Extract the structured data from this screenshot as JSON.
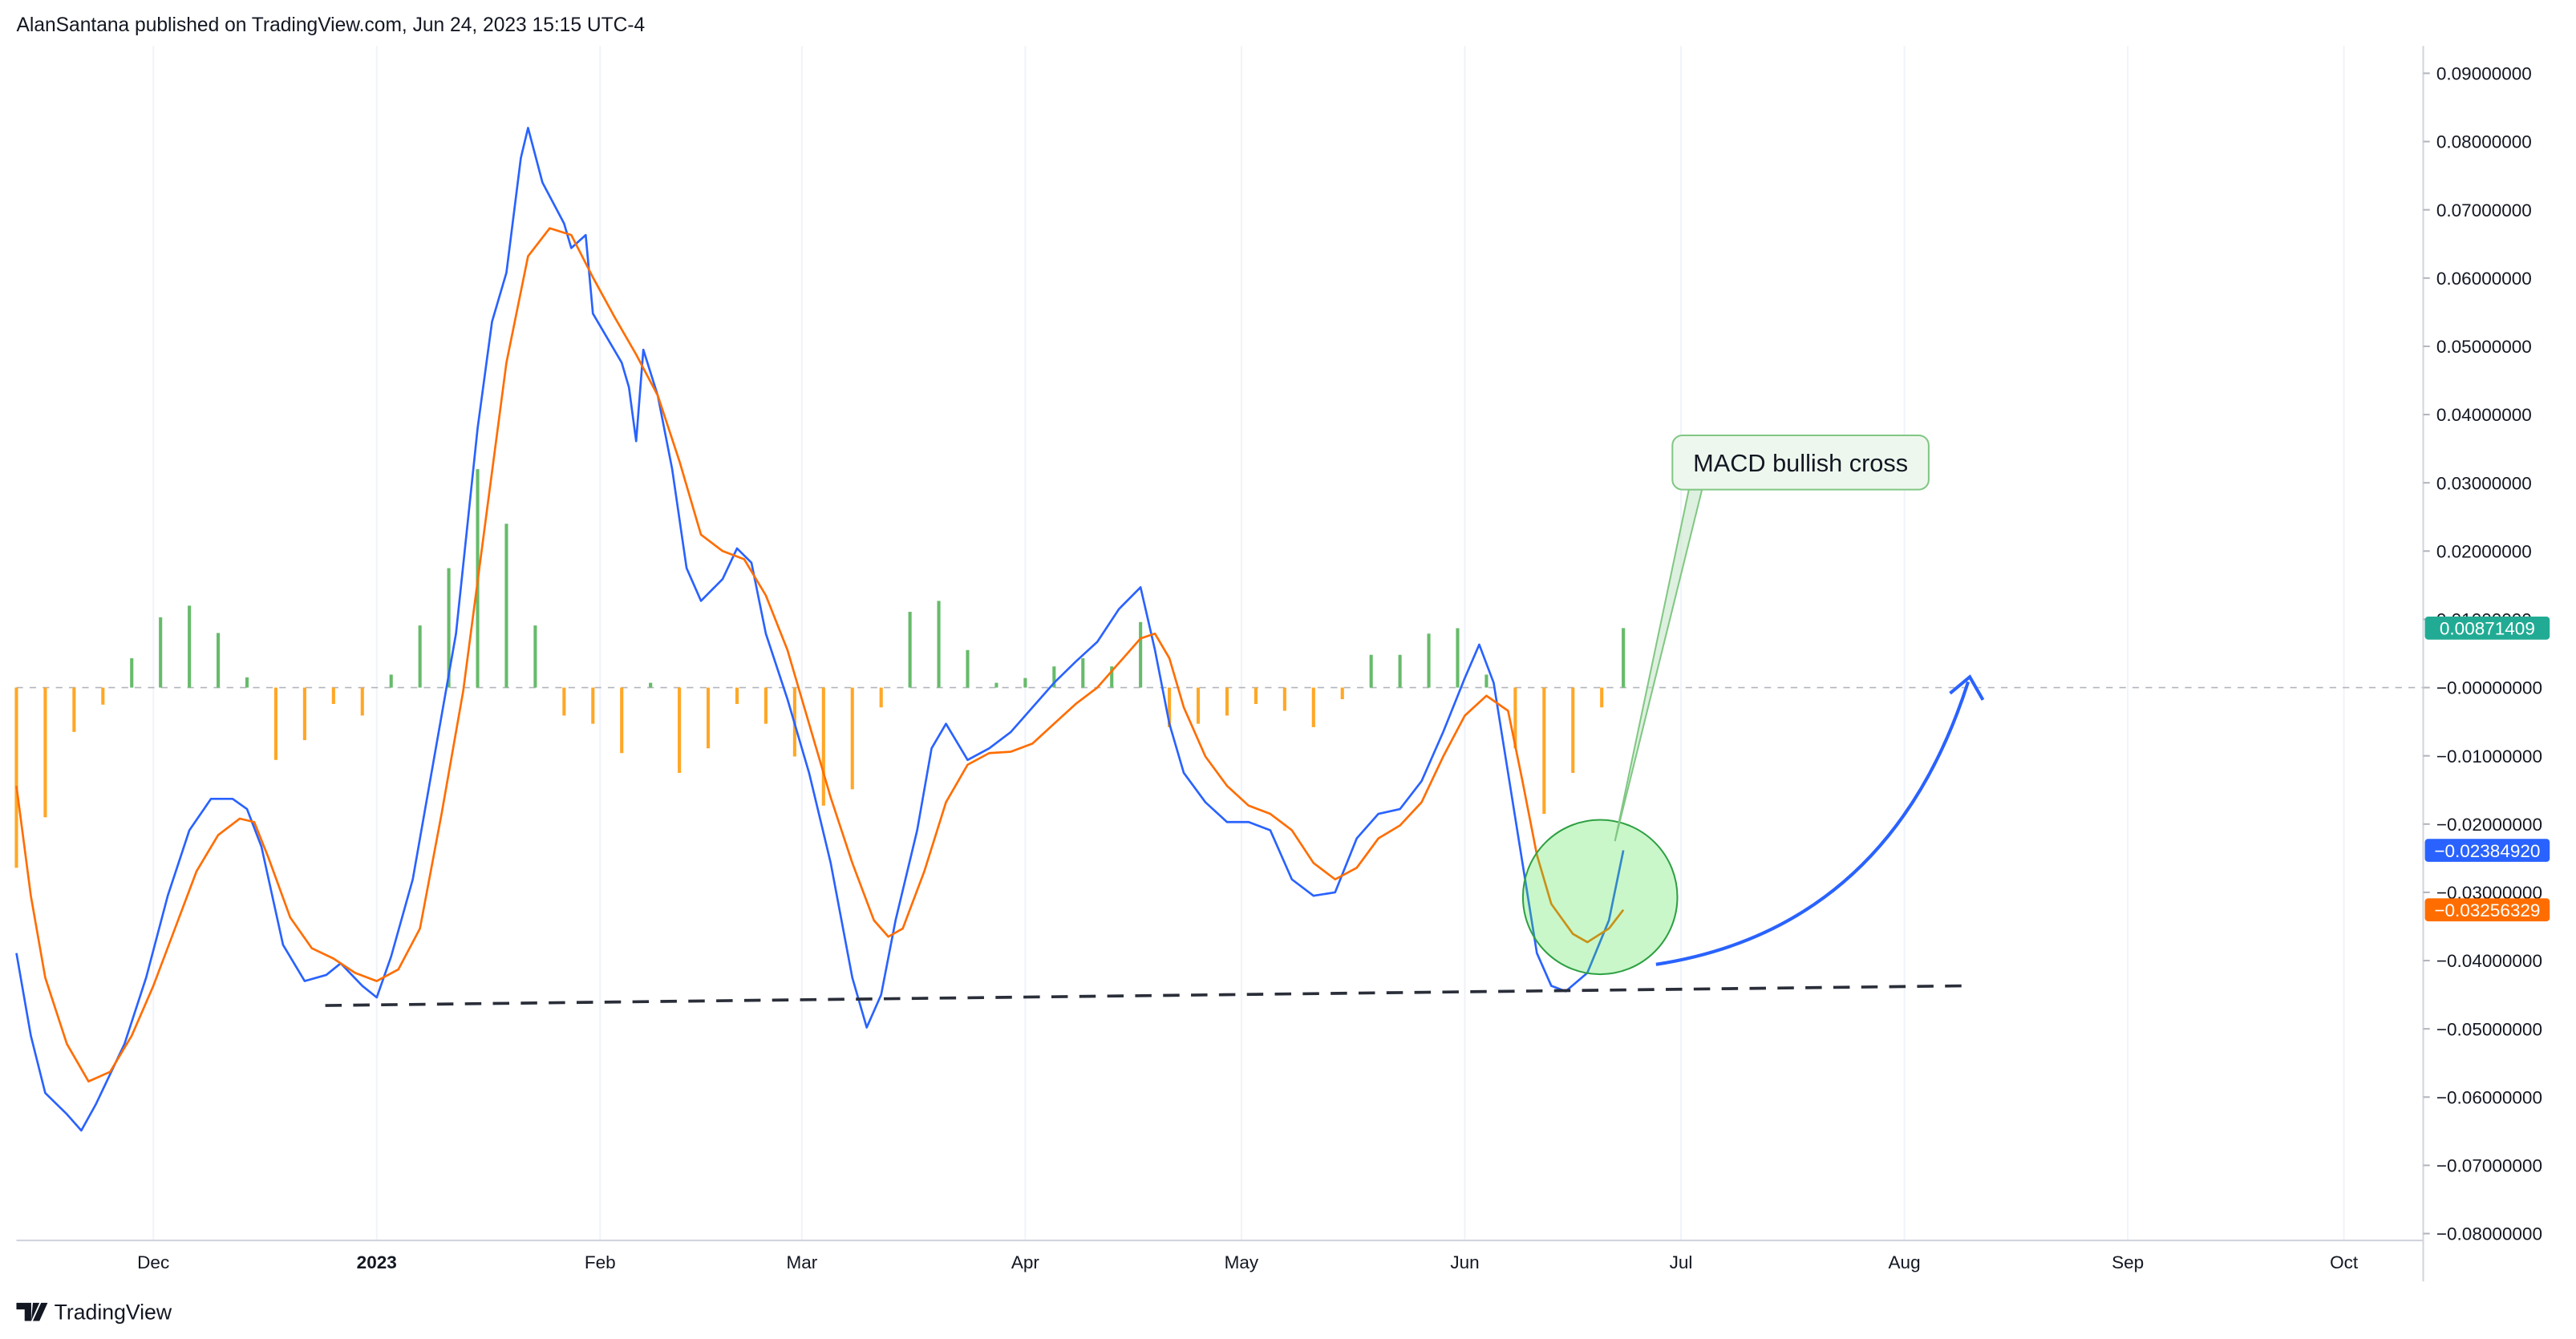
{
  "header": {
    "text": "AlanSantana published on TradingView.com, Jun 24, 2023 15:15 UTC-4"
  },
  "footer": {
    "brand": "TradingView"
  },
  "chart_data": {
    "type": "line",
    "annotation": "MACD bullish cross",
    "xlim": [
      -19,
      315
    ],
    "xticks": [
      {
        "value": 0,
        "label": "Dec"
      },
      {
        "value": 31,
        "label": "2023"
      },
      {
        "value": 62,
        "label": "Feb"
      },
      {
        "value": 90,
        "label": "Mar"
      },
      {
        "value": 121,
        "label": "Apr"
      },
      {
        "value": 151,
        "label": "May"
      },
      {
        "value": 182,
        "label": "Jun"
      },
      {
        "value": 212,
        "label": "Jul"
      },
      {
        "value": 243,
        "label": "Aug"
      },
      {
        "value": 274,
        "label": "Sep"
      },
      {
        "value": 304,
        "label": "Oct"
      }
    ],
    "ylim": [
      -0.081,
      0.094
    ],
    "yticks": [
      {
        "value": -0.08,
        "label": "−0.08000000"
      },
      {
        "value": -0.07,
        "label": "−0.07000000"
      },
      {
        "value": -0.06,
        "label": "−0.06000000"
      },
      {
        "value": -0.05,
        "label": "−0.05000000"
      },
      {
        "value": -0.04,
        "label": "−0.04000000"
      },
      {
        "value": -0.03,
        "label": "−0.03000000"
      },
      {
        "value": -0.02,
        "label": "−0.02000000"
      },
      {
        "value": -0.01,
        "label": "−0.01000000"
      },
      {
        "value": 0,
        "label": "−0.00000000"
      },
      {
        "value": 0.01,
        "label": "0.01000000"
      },
      {
        "value": 0.02,
        "label": "0.02000000"
      },
      {
        "value": 0.03,
        "label": "0.03000000"
      },
      {
        "value": 0.04,
        "label": "0.04000000"
      },
      {
        "value": 0.05,
        "label": "0.05000000"
      },
      {
        "value": 0.06,
        "label": "0.06000000"
      },
      {
        "value": 0.07,
        "label": "0.07000000"
      },
      {
        "value": 0.08,
        "label": "0.08000000"
      },
      {
        "value": 0.09,
        "label": "0.09000000"
      }
    ],
    "series": [
      {
        "type": "bar",
        "color_positive": "#66bb6a",
        "color_negative": "#ffa726",
        "label_color": "#22ab94",
        "x": [
          -19,
          -15,
          -11,
          -7,
          -3,
          1,
          5,
          9,
          13,
          17,
          21,
          25,
          29,
          33,
          37,
          41,
          45,
          49,
          53,
          57,
          61,
          65,
          69,
          73,
          77,
          81,
          85,
          89,
          93,
          97,
          101,
          105,
          109,
          113,
          117,
          121,
          125,
          129,
          133,
          137,
          141,
          145,
          149,
          153,
          157,
          161,
          165,
          169,
          173,
          177,
          181,
          185,
          189,
          193,
          197,
          201,
          204
        ],
        "values": [
          -0.0264,
          -0.019,
          -0.0065,
          -0.0025,
          0.0043,
          0.0103,
          0.012,
          0.008,
          0.0015,
          -0.0106,
          -0.0077,
          -0.0024,
          -0.0041,
          0.0019,
          0.0091,
          0.0175,
          0.032,
          0.024,
          0.0091,
          -0.0041,
          -0.0053,
          -0.0096,
          0.0007,
          -0.0125,
          -0.0089,
          -0.0024,
          -0.0053,
          -0.0101,
          -0.0173,
          -0.0149,
          -0.0029,
          0.0111,
          0.0127,
          0.0055,
          0.0007,
          0.0014,
          0.0031,
          0.0043,
          0.0031,
          0.0096,
          -0.0058,
          -0.0053,
          -0.0041,
          -0.0024,
          -0.0034,
          -0.0058,
          -0.0017,
          0.0048,
          0.0048,
          0.0079,
          0.0087,
          0.0019,
          -0.0089,
          -0.0185,
          -0.0125,
          -0.0029,
          0.00871409
        ],
        "last_label": "0.00871409"
      },
      {
        "type": "line",
        "color": "#2962ff",
        "x": [
          -19,
          -17,
          -15,
          -12,
          -10,
          -8,
          -4,
          -1,
          2,
          5,
          8,
          11,
          13,
          15,
          18,
          21,
          24,
          26,
          29,
          31,
          33,
          36,
          39,
          42,
          45,
          47,
          49,
          51,
          52,
          54,
          57,
          58,
          60,
          61,
          63,
          65,
          66,
          67,
          68,
          70,
          72,
          74,
          76,
          79,
          81,
          83,
          85,
          88,
          91,
          94,
          97,
          99,
          101,
          103,
          106,
          108,
          110,
          113,
          116,
          119,
          122,
          125,
          128,
          131,
          134,
          137,
          139,
          141,
          143,
          146,
          149,
          152,
          155,
          158,
          161,
          164,
          167,
          170,
          173,
          176,
          179,
          182,
          184,
          186,
          188,
          190,
          192,
          194,
          196,
          199,
          202,
          204
        ],
        "values": [
          -0.0389,
          -0.051,
          -0.0594,
          -0.0625,
          -0.0649,
          -0.0611,
          -0.0522,
          -0.0425,
          -0.0305,
          -0.0209,
          -0.0163,
          -0.0163,
          -0.0178,
          -0.0233,
          -0.0377,
          -0.043,
          -0.0421,
          -0.0404,
          -0.0437,
          -0.0454,
          -0.0394,
          -0.0281,
          -0.0101,
          0.0079,
          0.038,
          0.0536,
          0.0608,
          0.0776,
          0.082,
          0.074,
          0.068,
          0.0644,
          0.0663,
          0.0548,
          0.0512,
          0.0476,
          0.044,
          0.0361,
          0.0495,
          0.0428,
          0.032,
          0.0175,
          0.0127,
          0.0159,
          0.0204,
          0.0183,
          0.0079,
          -0.0017,
          -0.0125,
          -0.0257,
          -0.0425,
          -0.0498,
          -0.045,
          -0.0341,
          -0.0209,
          -0.0089,
          -0.0053,
          -0.0106,
          -0.0089,
          -0.0065,
          -0.0029,
          0.0007,
          0.0038,
          0.0067,
          0.0115,
          0.0147,
          0.0055,
          -0.0053,
          -0.0125,
          -0.0168,
          -0.0197,
          -0.0197,
          -0.0209,
          -0.0281,
          -0.0305,
          -0.03,
          -0.0221,
          -0.0185,
          -0.0178,
          -0.0137,
          -0.0065,
          0.0014,
          0.0063,
          0.0007,
          -0.0125,
          -0.0257,
          -0.0389,
          -0.0437,
          -0.0445,
          -0.0418,
          -0.0341,
          -0.0238492
        ],
        "last_label": "−0.02384920"
      },
      {
        "type": "line",
        "color": "#ff6d00",
        "x": [
          -19,
          -17,
          -15,
          -12,
          -9,
          -6,
          -3,
          0,
          3,
          6,
          9,
          12,
          14,
          16,
          19,
          22,
          25,
          28,
          31,
          34,
          37,
          40,
          43,
          46,
          49,
          52,
          55,
          58,
          61,
          64,
          67,
          70,
          73,
          76,
          79,
          82,
          85,
          88,
          91,
          94,
          97,
          100,
          102,
          104,
          107,
          110,
          113,
          116,
          119,
          122,
          125,
          128,
          131,
          134,
          137,
          139,
          141,
          143,
          146,
          149,
          152,
          155,
          158,
          161,
          164,
          167,
          170,
          173,
          176,
          179,
          182,
          185,
          188,
          190,
          192,
          194,
          197,
          199,
          202,
          204
        ],
        "values": [
          -0.0144,
          -0.0305,
          -0.0425,
          -0.0522,
          -0.0577,
          -0.0563,
          -0.051,
          -0.0437,
          -0.0353,
          -0.0269,
          -0.0216,
          -0.0192,
          -0.0197,
          -0.025,
          -0.0337,
          -0.0382,
          -0.0397,
          -0.0418,
          -0.043,
          -0.0413,
          -0.0353,
          -0.0185,
          -0.0005,
          0.0236,
          0.0476,
          0.0632,
          0.0673,
          0.0663,
          0.0601,
          0.0543,
          0.0488,
          0.0428,
          0.0332,
          0.0224,
          0.02,
          0.0188,
          0.0135,
          0.0055,
          -0.0053,
          -0.0161,
          -0.0257,
          -0.0341,
          -0.0365,
          -0.0353,
          -0.0269,
          -0.0168,
          -0.0113,
          -0.0096,
          -0.0094,
          -0.0082,
          -0.0053,
          -0.0024,
          0,
          0.0036,
          0.0072,
          0.0079,
          0.0043,
          -0.0029,
          -0.0101,
          -0.0144,
          -0.0173,
          -0.0185,
          -0.0209,
          -0.0257,
          -0.0281,
          -0.0264,
          -0.0221,
          -0.0202,
          -0.0168,
          -0.0101,
          -0.0041,
          -0.0012,
          -0.0034,
          -0.0137,
          -0.0245,
          -0.0317,
          -0.0361,
          -0.0373,
          -0.0353,
          -0.03256329
        ],
        "last_label": "−0.03256329"
      }
    ]
  }
}
